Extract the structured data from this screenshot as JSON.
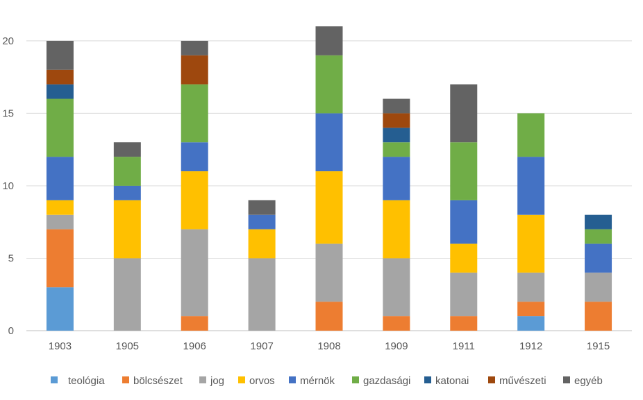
{
  "chart_data": {
    "type": "bar",
    "stacked": true,
    "title": "",
    "xlabel": "",
    "ylabel": "",
    "ylim": [
      0,
      21
    ],
    "yticks": [
      0,
      5,
      10,
      15,
      20
    ],
    "grid": true,
    "legend_position": "bottom",
    "categories": [
      "1903",
      "1905",
      "1906",
      "1907",
      "1908",
      "1909",
      "1911",
      "1912",
      "1915"
    ],
    "series": [
      {
        "name": "teológia",
        "color": "#5B9BD5",
        "values": [
          3,
          0,
          0,
          0,
          0,
          0,
          0,
          1,
          0
        ]
      },
      {
        "name": "bölcsészet",
        "color": "#ED7D31",
        "values": [
          4,
          0,
          1,
          0,
          2,
          1,
          1,
          1,
          2
        ]
      },
      {
        "name": "jog",
        "color": "#A5A5A5",
        "values": [
          1,
          5,
          6,
          5,
          4,
          4,
          3,
          2,
          2
        ]
      },
      {
        "name": "orvos",
        "color": "#FFC000",
        "values": [
          1,
          4,
          4,
          2,
          5,
          4,
          2,
          4,
          0
        ]
      },
      {
        "name": "mérnök",
        "color": "#4472C4",
        "values": [
          3,
          1,
          2,
          1,
          4,
          3,
          3,
          4,
          2
        ]
      },
      {
        "name": "gazdasági",
        "color": "#70AD47",
        "values": [
          4,
          2,
          4,
          0,
          4,
          1,
          4,
          3,
          1
        ]
      },
      {
        "name": "katonai",
        "color": "#255E91",
        "values": [
          1,
          0,
          0,
          0,
          0,
          1,
          0,
          0,
          1
        ]
      },
      {
        "name": "művészeti",
        "color": "#9E480E",
        "values": [
          1,
          0,
          2,
          0,
          0,
          1,
          0,
          0,
          0
        ]
      },
      {
        "name": "egyéb",
        "color": "#636363",
        "values": [
          2,
          1,
          1,
          1,
          2,
          1,
          4,
          0,
          0
        ]
      }
    ]
  }
}
